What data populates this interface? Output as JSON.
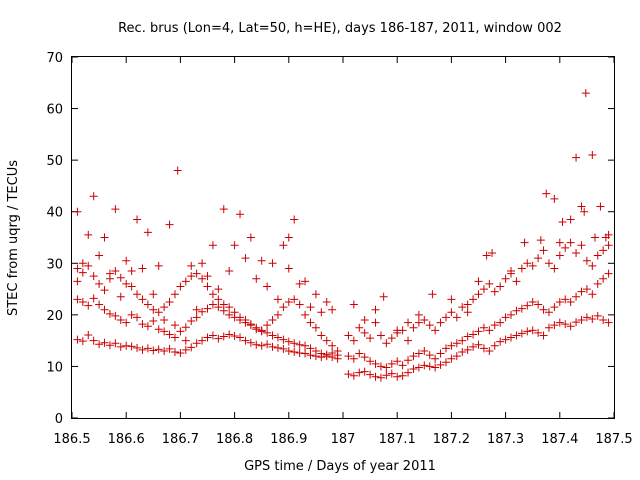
{
  "chart_data": {
    "type": "scatter",
    "title": "Rec. brus (Lon=4, Lat=50, h=HE), days 186-187, 2011, window 002",
    "xlabel": "GPS time / Days of year 2011",
    "ylabel": "STEC from uqrg / TECUs",
    "xlim": [
      186.5,
      187.5
    ],
    "ylim": [
      0,
      70
    ],
    "xticks": [
      "186.5",
      "186.6",
      "186.7",
      "186.8",
      "186.9",
      "187",
      "187.1",
      "187.2",
      "187.3",
      "187.4",
      "187.5"
    ],
    "yticks": [
      "0",
      "10",
      "20",
      "30",
      "40",
      "50",
      "60",
      "70"
    ],
    "grid": false,
    "marker": "plus",
    "color": "#cc0000",
    "points": [
      [
        186.51,
        15.2
      ],
      [
        186.52,
        14.9
      ],
      [
        186.53,
        16.1
      ],
      [
        186.54,
        15.0
      ],
      [
        186.55,
        14.3
      ],
      [
        186.56,
        14.6
      ],
      [
        186.57,
        14.1
      ],
      [
        186.58,
        14.5
      ],
      [
        186.59,
        13.8
      ],
      [
        186.6,
        14.0
      ],
      [
        186.61,
        13.9
      ],
      [
        186.62,
        13.6
      ],
      [
        186.63,
        13.2
      ],
      [
        186.64,
        13.5
      ],
      [
        186.65,
        13.1
      ],
      [
        186.66,
        13.3
      ],
      [
        186.67,
        13.0
      ],
      [
        186.68,
        13.4
      ],
      [
        186.69,
        12.8
      ],
      [
        186.7,
        12.6
      ],
      [
        186.71,
        13.2
      ],
      [
        186.72,
        13.7
      ],
      [
        186.73,
        14.5
      ],
      [
        186.74,
        15.0
      ],
      [
        186.75,
        15.6
      ],
      [
        186.76,
        16.0
      ],
      [
        186.77,
        15.4
      ],
      [
        186.78,
        15.8
      ],
      [
        186.79,
        16.2
      ],
      [
        186.8,
        15.9
      ],
      [
        186.81,
        15.6
      ],
      [
        186.82,
        15.0
      ],
      [
        186.83,
        14.6
      ],
      [
        186.84,
        14.2
      ],
      [
        186.85,
        14.0
      ],
      [
        186.86,
        14.3
      ],
      [
        186.87,
        13.8
      ],
      [
        186.88,
        13.6
      ],
      [
        186.89,
        13.4
      ],
      [
        186.9,
        13.0
      ],
      [
        186.91,
        12.8
      ],
      [
        186.92,
        12.6
      ],
      [
        186.93,
        12.5
      ],
      [
        186.94,
        12.2
      ],
      [
        186.95,
        12.0
      ],
      [
        186.96,
        11.8
      ],
      [
        186.97,
        12.3
      ],
      [
        186.98,
        12.6
      ],
      [
        186.99,
        12.2
      ],
      [
        186.51,
        23.0
      ],
      [
        186.52,
        22.5
      ],
      [
        186.53,
        21.8
      ],
      [
        186.54,
        23.2
      ],
      [
        186.55,
        22.0
      ],
      [
        186.56,
        21.0
      ],
      [
        186.57,
        20.2
      ],
      [
        186.58,
        19.8
      ],
      [
        186.59,
        19.0
      ],
      [
        186.6,
        18.5
      ],
      [
        186.61,
        20.0
      ],
      [
        186.62,
        19.5
      ],
      [
        186.63,
        18.2
      ],
      [
        186.64,
        17.8
      ],
      [
        186.65,
        18.8
      ],
      [
        186.66,
        17.2
      ],
      [
        186.67,
        16.8
      ],
      [
        186.68,
        16.2
      ],
      [
        186.69,
        15.6
      ],
      [
        186.7,
        16.8
      ],
      [
        186.71,
        17.6
      ],
      [
        186.72,
        18.8
      ],
      [
        186.73,
        19.5
      ],
      [
        186.74,
        20.6
      ],
      [
        186.75,
        21.2
      ],
      [
        186.76,
        22.0
      ],
      [
        186.77,
        21.5
      ],
      [
        186.78,
        20.8
      ],
      [
        186.79,
        20.0
      ],
      [
        186.8,
        19.5
      ],
      [
        186.81,
        19.0
      ],
      [
        186.82,
        18.5
      ],
      [
        186.83,
        18.0
      ],
      [
        186.84,
        17.2
      ],
      [
        186.85,
        16.8
      ],
      [
        186.86,
        16.5
      ],
      [
        186.87,
        16.0
      ],
      [
        186.88,
        15.6
      ],
      [
        186.89,
        15.2
      ],
      [
        186.9,
        14.8
      ],
      [
        186.91,
        14.5
      ],
      [
        186.92,
        14.2
      ],
      [
        186.93,
        14.0
      ],
      [
        186.94,
        13.5
      ],
      [
        186.95,
        13.0
      ],
      [
        186.96,
        12.5
      ],
      [
        186.97,
        12.0
      ],
      [
        186.98,
        11.8
      ],
      [
        186.99,
        11.5
      ],
      [
        186.51,
        29.0
      ],
      [
        186.52,
        28.2
      ],
      [
        186.53,
        29.5
      ],
      [
        186.54,
        27.5
      ],
      [
        186.55,
        26.0
      ],
      [
        186.56,
        24.8
      ],
      [
        186.57,
        27.0
      ],
      [
        186.58,
        28.5
      ],
      [
        186.59,
        27.2
      ],
      [
        186.6,
        26.0
      ],
      [
        186.61,
        25.5
      ],
      [
        186.62,
        24.0
      ],
      [
        186.63,
        23.0
      ],
      [
        186.64,
        22.0
      ],
      [
        186.65,
        21.0
      ],
      [
        186.66,
        20.5
      ],
      [
        186.67,
        21.5
      ],
      [
        186.68,
        22.5
      ],
      [
        186.69,
        24.0
      ],
      [
        186.7,
        25.5
      ],
      [
        186.71,
        26.5
      ],
      [
        186.72,
        27.5
      ],
      [
        186.73,
        28.0
      ],
      [
        186.74,
        27.0
      ],
      [
        186.75,
        25.5
      ],
      [
        186.76,
        24.0
      ],
      [
        186.77,
        23.0
      ],
      [
        186.78,
        22.0
      ],
      [
        186.79,
        21.5
      ],
      [
        186.8,
        20.5
      ],
      [
        186.81,
        19.5
      ],
      [
        186.82,
        19.0
      ],
      [
        186.83,
        18.2
      ],
      [
        186.84,
        17.5
      ],
      [
        186.85,
        17.0
      ],
      [
        186.86,
        18.0
      ],
      [
        186.87,
        19.0
      ],
      [
        186.88,
        20.0
      ],
      [
        186.89,
        21.5
      ],
      [
        186.9,
        22.5
      ],
      [
        186.91,
        23.0
      ],
      [
        186.92,
        22.0
      ],
      [
        186.93,
        20.0
      ],
      [
        186.94,
        18.5
      ],
      [
        186.95,
        17.5
      ],
      [
        186.96,
        16.0
      ],
      [
        186.97,
        15.0
      ],
      [
        186.98,
        14.0
      ],
      [
        186.99,
        13.0
      ],
      [
        186.51,
        40.0
      ],
      [
        186.53,
        35.5
      ],
      [
        186.54,
        43.0
      ],
      [
        186.56,
        35.0
      ],
      [
        186.58,
        40.5
      ],
      [
        186.6,
        30.5
      ],
      [
        186.62,
        38.5
      ],
      [
        186.64,
        36.0
      ],
      [
        186.66,
        29.5
      ],
      [
        186.68,
        37.5
      ],
      [
        186.695,
        48.0
      ],
      [
        186.72,
        29.5
      ],
      [
        186.74,
        30.0
      ],
      [
        186.76,
        33.5
      ],
      [
        186.78,
        40.5
      ],
      [
        186.8,
        33.5
      ],
      [
        186.81,
        39.5
      ],
      [
        186.83,
        35.0
      ],
      [
        186.85,
        30.5
      ],
      [
        186.87,
        30.0
      ],
      [
        186.89,
        33.5
      ],
      [
        186.9,
        35.0
      ],
      [
        186.91,
        38.5
      ],
      [
        186.93,
        26.5
      ],
      [
        186.95,
        24.0
      ],
      [
        186.97,
        22.5
      ],
      [
        186.51,
        26.5
      ],
      [
        186.52,
        30.0
      ],
      [
        186.55,
        31.5
      ],
      [
        186.57,
        28.0
      ],
      [
        186.59,
        23.5
      ],
      [
        186.61,
        28.5
      ],
      [
        186.63,
        29.0
      ],
      [
        186.65,
        24.0
      ],
      [
        186.67,
        19.0
      ],
      [
        186.69,
        18.0
      ],
      [
        186.71,
        15.0
      ],
      [
        186.73,
        21.0
      ],
      [
        186.75,
        27.5
      ],
      [
        186.77,
        25.0
      ],
      [
        186.79,
        28.5
      ],
      [
        186.82,
        31.0
      ],
      [
        186.84,
        27.0
      ],
      [
        186.86,
        25.5
      ],
      [
        186.88,
        23.0
      ],
      [
        186.9,
        29.0
      ],
      [
        186.92,
        26.0
      ],
      [
        186.94,
        21.5
      ],
      [
        186.96,
        20.5
      ],
      [
        186.98,
        21.0
      ],
      [
        187.01,
        8.5
      ],
      [
        187.02,
        8.2
      ],
      [
        187.03,
        8.8
      ],
      [
        187.04,
        9.0
      ],
      [
        187.05,
        8.4
      ],
      [
        187.06,
        8.0
      ],
      [
        187.07,
        7.8
      ],
      [
        187.08,
        8.3
      ],
      [
        187.09,
        8.6
      ],
      [
        187.1,
        8.0
      ],
      [
        187.11,
        8.2
      ],
      [
        187.12,
        8.8
      ],
      [
        187.13,
        9.5
      ],
      [
        187.14,
        9.8
      ],
      [
        187.15,
        10.2
      ],
      [
        187.16,
        10.0
      ],
      [
        187.17,
        9.8
      ],
      [
        187.18,
        10.3
      ],
      [
        187.19,
        10.8
      ],
      [
        187.2,
        11.5
      ],
      [
        187.21,
        12.0
      ],
      [
        187.22,
        12.8
      ],
      [
        187.23,
        13.2
      ],
      [
        187.24,
        13.8
      ],
      [
        187.25,
        14.2
      ],
      [
        187.26,
        13.5
      ],
      [
        187.27,
        13.0
      ],
      [
        187.28,
        14.0
      ],
      [
        187.29,
        14.8
      ],
      [
        187.3,
        15.2
      ],
      [
        187.31,
        15.6
      ],
      [
        187.32,
        16.0
      ],
      [
        187.33,
        16.4
      ],
      [
        187.34,
        16.8
      ],
      [
        187.35,
        17.0
      ],
      [
        187.36,
        16.5
      ],
      [
        187.37,
        16.0
      ],
      [
        187.38,
        17.5
      ],
      [
        187.39,
        18.0
      ],
      [
        187.4,
        18.5
      ],
      [
        187.41,
        18.2
      ],
      [
        187.42,
        17.8
      ],
      [
        187.43,
        18.6
      ],
      [
        187.44,
        19.0
      ],
      [
        187.45,
        19.5
      ],
      [
        187.46,
        19.2
      ],
      [
        187.47,
        19.8
      ],
      [
        187.48,
        19.0
      ],
      [
        187.49,
        18.5
      ],
      [
        187.01,
        12.0
      ],
      [
        187.02,
        11.5
      ],
      [
        187.03,
        12.5
      ],
      [
        187.04,
        11.8
      ],
      [
        187.05,
        11.0
      ],
      [
        187.06,
        10.5
      ],
      [
        187.07,
        10.0
      ],
      [
        187.08,
        9.8
      ],
      [
        187.09,
        10.5
      ],
      [
        187.1,
        11.0
      ],
      [
        187.11,
        10.2
      ],
      [
        187.12,
        11.2
      ],
      [
        187.13,
        12.0
      ],
      [
        187.14,
        12.5
      ],
      [
        187.15,
        13.0
      ],
      [
        187.16,
        12.2
      ],
      [
        187.17,
        11.5
      ],
      [
        187.18,
        12.5
      ],
      [
        187.19,
        13.5
      ],
      [
        187.2,
        14.0
      ],
      [
        187.21,
        14.5
      ],
      [
        187.22,
        15.0
      ],
      [
        187.23,
        15.8
      ],
      [
        187.24,
        16.2
      ],
      [
        187.25,
        16.8
      ],
      [
        187.26,
        17.5
      ],
      [
        187.27,
        17.0
      ],
      [
        187.28,
        18.0
      ],
      [
        187.29,
        18.5
      ],
      [
        187.3,
        19.5
      ],
      [
        187.31,
        20.0
      ],
      [
        187.32,
        20.8
      ],
      [
        187.33,
        21.2
      ],
      [
        187.34,
        21.8
      ],
      [
        187.35,
        22.5
      ],
      [
        187.36,
        22.0
      ],
      [
        187.37,
        21.0
      ],
      [
        187.38,
        20.5
      ],
      [
        187.39,
        21.5
      ],
      [
        187.4,
        22.5
      ],
      [
        187.41,
        23.0
      ],
      [
        187.42,
        22.5
      ],
      [
        187.43,
        23.5
      ],
      [
        187.44,
        24.5
      ],
      [
        187.45,
        25.0
      ],
      [
        187.46,
        24.0
      ],
      [
        187.47,
        26.0
      ],
      [
        187.48,
        27.0
      ],
      [
        187.49,
        28.0
      ],
      [
        187.01,
        16.0
      ],
      [
        187.02,
        15.0
      ],
      [
        187.03,
        17.5
      ],
      [
        187.04,
        16.5
      ],
      [
        187.05,
        15.5
      ],
      [
        187.06,
        18.5
      ],
      [
        187.07,
        16.0
      ],
      [
        187.08,
        14.5
      ],
      [
        187.09,
        15.5
      ],
      [
        187.1,
        16.5
      ],
      [
        187.11,
        17.0
      ],
      [
        187.12,
        15.0
      ],
      [
        187.13,
        17.5
      ],
      [
        187.14,
        18.5
      ],
      [
        187.15,
        19.0
      ],
      [
        187.16,
        18.0
      ],
      [
        187.17,
        17.0
      ],
      [
        187.18,
        18.5
      ],
      [
        187.19,
        19.5
      ],
      [
        187.2,
        20.5
      ],
      [
        187.21,
        19.5
      ],
      [
        187.22,
        21.5
      ],
      [
        187.23,
        22.0
      ],
      [
        187.24,
        23.0
      ],
      [
        187.25,
        24.0
      ],
      [
        187.26,
        25.0
      ],
      [
        187.27,
        26.0
      ],
      [
        187.28,
        24.5
      ],
      [
        187.29,
        25.5
      ],
      [
        187.3,
        27.0
      ],
      [
        187.31,
        28.0
      ],
      [
        187.32,
        26.5
      ],
      [
        187.33,
        29.0
      ],
      [
        187.34,
        30.0
      ],
      [
        187.35,
        29.5
      ],
      [
        187.36,
        31.0
      ],
      [
        187.37,
        32.5
      ],
      [
        187.38,
        30.0
      ],
      [
        187.39,
        29.0
      ],
      [
        187.4,
        31.5
      ],
      [
        187.41,
        33.0
      ],
      [
        187.42,
        34.0
      ],
      [
        187.43,
        32.0
      ],
      [
        187.44,
        33.5
      ],
      [
        187.45,
        30.5
      ],
      [
        187.46,
        29.5
      ],
      [
        187.47,
        31.5
      ],
      [
        187.48,
        32.5
      ],
      [
        187.49,
        33.5
      ],
      [
        187.02,
        22.0
      ],
      [
        187.04,
        19.0
      ],
      [
        187.06,
        21.0
      ],
      [
        187.075,
        23.5
      ],
      [
        187.1,
        17.0
      ],
      [
        187.12,
        18.5
      ],
      [
        187.14,
        20.0
      ],
      [
        187.165,
        24.0
      ],
      [
        187.2,
        23.0
      ],
      [
        187.23,
        20.5
      ],
      [
        187.25,
        26.5
      ],
      [
        187.265,
        31.5
      ],
      [
        187.275,
        32.0
      ],
      [
        187.31,
        28.5
      ],
      [
        187.335,
        34.0
      ],
      [
        187.365,
        34.5
      ],
      [
        187.375,
        43.5
      ],
      [
        187.39,
        42.5
      ],
      [
        187.4,
        34.0
      ],
      [
        187.405,
        38.0
      ],
      [
        187.42,
        38.5
      ],
      [
        187.43,
        50.5
      ],
      [
        187.44,
        41.0
      ],
      [
        187.445,
        40.0
      ],
      [
        187.448,
        63.0
      ],
      [
        187.46,
        51.0
      ],
      [
        187.465,
        35.0
      ],
      [
        187.475,
        41.0
      ],
      [
        187.485,
        35.0
      ],
      [
        187.49,
        35.5
      ]
    ]
  }
}
